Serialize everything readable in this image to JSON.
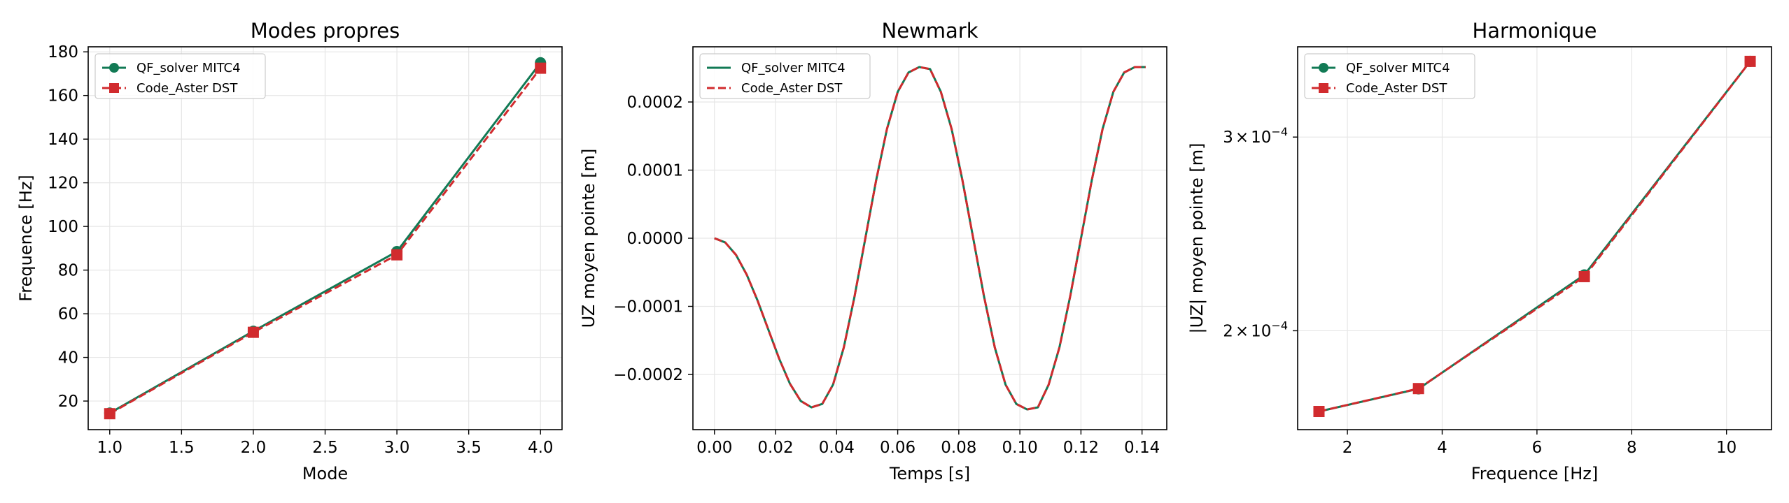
{
  "colors": {
    "green": "#127a55",
    "red": "#d12b2e",
    "grid": "#e6e6e6"
  },
  "chart_data": [
    {
      "type": "line",
      "title": "Modes propres",
      "xlabel": "Mode",
      "ylabel": "Frequence [Hz]",
      "xlim": [
        0.85,
        4.15
      ],
      "ylim": [
        6.9,
        182.3
      ],
      "xticks": [
        "1.0",
        "1.5",
        "2.0",
        "2.5",
        "3.0",
        "3.5",
        "4.0"
      ],
      "xtick_values": [
        1.0,
        1.5,
        2.0,
        2.5,
        3.0,
        3.5,
        4.0
      ],
      "yticks": [
        "20",
        "40",
        "60",
        "80",
        "100",
        "120",
        "140",
        "160",
        "180"
      ],
      "ytick_values": [
        20,
        40,
        60,
        80,
        100,
        120,
        140,
        160,
        180
      ],
      "grid": true,
      "legend_position": "top-left",
      "x": [
        1,
        2,
        3,
        4
      ],
      "series": [
        {
          "name": "QF_solver MITC4",
          "values": [
            14.5,
            52.0,
            88.5,
            175.0
          ],
          "style": "solid",
          "marker": "circle",
          "color": "#127a55"
        },
        {
          "name": "Code_Aster DST",
          "values": [
            14.2,
            51.5,
            87.0,
            172.5
          ],
          "style": "dashed",
          "marker": "square",
          "color": "#d12b2e"
        }
      ]
    },
    {
      "type": "line",
      "title": "Newmark",
      "xlabel": "Temps [s]",
      "ylabel": "UZ moyen pointe [m]",
      "xlim": [
        -0.00705,
        0.1481
      ],
      "ylim": [
        -0.000281,
        0.000281
      ],
      "xticks": [
        "0.00",
        "0.02",
        "0.04",
        "0.06",
        "0.08",
        "0.10",
        "0.12",
        "0.14"
      ],
      "xtick_values": [
        0.0,
        0.02,
        0.04,
        0.06,
        0.08,
        0.1,
        0.12,
        0.14
      ],
      "yticks": [
        "0.0002",
        "0.0001",
        "0.0000",
        "−0.0001",
        "−0.0002"
      ],
      "ytick_values": [
        0.0002,
        0.0001,
        0.0,
        -0.0001,
        -0.0002
      ],
      "grid": true,
      "legend_position": "top-left",
      "x": [
        0.0,
        0.00353,
        0.00706,
        0.01059,
        0.01412,
        0.01765,
        0.02118,
        0.02471,
        0.02824,
        0.03177,
        0.0353,
        0.03883,
        0.04236,
        0.04589,
        0.04942,
        0.05295,
        0.05648,
        0.06001,
        0.06354,
        0.06707,
        0.0706,
        0.07413,
        0.07766,
        0.08119,
        0.08472,
        0.08825,
        0.09178,
        0.09531,
        0.09884,
        0.10237,
        0.1059,
        0.10943,
        0.11296,
        0.11649,
        0.12002,
        0.12355,
        0.12708,
        0.13061,
        0.13414,
        0.13767,
        0.1412
      ],
      "series": [
        {
          "name": "QF_solver MITC4",
          "values": [
            0.0,
            -6.2e-06,
            -2.45e-05,
            -5.37e-05,
            -9.16e-05,
            -0.0001342,
            -0.0001767,
            -0.0002135,
            -0.0002389,
            -0.0002483,
            -0.0002433,
            -0.0002149,
            -0.0001602,
            -8.5e-05,
            3e-07,
            8.52e-05,
            0.0001603,
            0.0002149,
            0.0002433,
            0.0002513,
            0.0002483,
            0.0002149,
            0.0001603,
            8.52e-05,
            1e-07,
            -8.51e-05,
            -0.0001602,
            -0.0002149,
            -0.0002433,
            -0.0002513,
            -0.0002483,
            -0.0002149,
            -0.0001602,
            -8.51e-05,
            0.0,
            8.51e-05,
            0.0001603,
            0.0002149,
            0.0002433,
            0.0002513,
            0.0002513
          ],
          "style": "solid",
          "color": "#127a55"
        },
        {
          "name": "Code_Aster DST",
          "values": [
            0.0,
            -6.2e-06,
            -2.45e-05,
            -5.37e-05,
            -9.16e-05,
            -0.0001342,
            -0.0001767,
            -0.0002135,
            -0.0002389,
            -0.0002483,
            -0.0002433,
            -0.0002149,
            -0.0001602,
            -8.5e-05,
            3e-07,
            8.52e-05,
            0.0001603,
            0.0002149,
            0.0002433,
            0.0002513,
            0.0002483,
            0.0002149,
            0.0001603,
            8.52e-05,
            1e-07,
            -8.51e-05,
            -0.0001602,
            -0.0002149,
            -0.0002433,
            -0.0002513,
            -0.0002483,
            -0.0002149,
            -0.0001602,
            -8.51e-05,
            0.0,
            8.51e-05,
            0.0001603,
            0.0002149,
            0.0002433,
            0.0002513,
            0.0002513
          ],
          "style": "dashed",
          "color": "#d12b2e"
        }
      ]
    },
    {
      "type": "line",
      "title": "Harmonique",
      "xlabel": "Frequence [Hz]",
      "ylabel": "|UZ| moyen pointe [m]",
      "scale_y": "log",
      "xlim": [
        0.95,
        10.95
      ],
      "ylim": [
        0.0001626,
        0.0003624
      ],
      "xticks": [
        "2",
        "4",
        "6",
        "8",
        "10"
      ],
      "xtick_values": [
        2,
        4,
        6,
        8,
        10
      ],
      "yticks": [
        {
          "value": 0.0003,
          "mantissa": "3",
          "exponent": "−4"
        },
        {
          "value": 0.0002,
          "mantissa": "2",
          "exponent": "−4"
        }
      ],
      "ytick_separator": "×",
      "ytick_base": "10",
      "grid": true,
      "legend_position": "top-left",
      "x": [
        1.4,
        3.5,
        7.0,
        10.5
      ],
      "series": [
        {
          "name": "QF_solver MITC4",
          "values": [
            0.0001689,
            0.0001771,
            0.0002248,
            0.0003515
          ],
          "style": "solid",
          "marker": "circle",
          "color": "#127a55"
        },
        {
          "name": "Code_Aster DST",
          "values": [
            0.0001689,
            0.0001772,
            0.000224,
            0.0003515
          ],
          "style": "dashed",
          "marker": "square",
          "color": "#d12b2e"
        }
      ]
    }
  ]
}
